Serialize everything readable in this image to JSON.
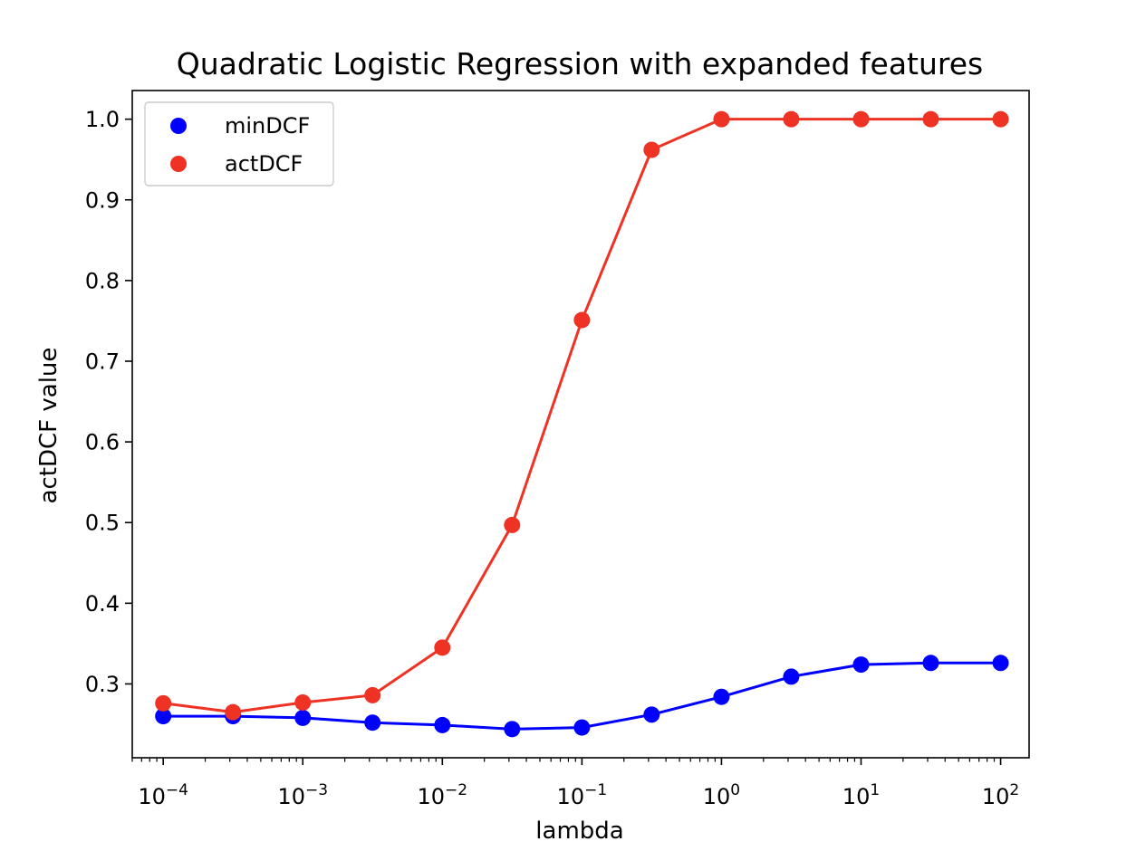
{
  "chart_data": {
    "type": "line",
    "title": "Quadratic Logistic Regression with expanded features",
    "xlabel": "lambda",
    "ylabel": "actDCF value",
    "xscale": "log",
    "xlim": [
      6e-05,
      160
    ],
    "ylim": [
      0.2085,
      1.0355
    ],
    "x": [
      0.0001,
      0.000316,
      0.001,
      0.00316,
      0.01,
      0.0316,
      0.1,
      0.316,
      1,
      3.16,
      10,
      31.6,
      100
    ],
    "x_ticks": [
      {
        "value": 0.0001,
        "base": "10",
        "exp": "−4"
      },
      {
        "value": 0.001,
        "base": "10",
        "exp": "−3"
      },
      {
        "value": 0.01,
        "base": "10",
        "exp": "−2"
      },
      {
        "value": 0.1,
        "base": "10",
        "exp": "−1"
      },
      {
        "value": 1,
        "base": "10",
        "exp": "0"
      },
      {
        "value": 10,
        "base": "10",
        "exp": "1"
      },
      {
        "value": 100,
        "base": "10",
        "exp": "2"
      }
    ],
    "y_ticks": [
      "0.3",
      "0.4",
      "0.5",
      "0.6",
      "0.7",
      "0.8",
      "0.9",
      "1.0"
    ],
    "grid": false,
    "legend_position": "top-left",
    "series": [
      {
        "name": "minDCF",
        "color": "#0000ff",
        "values": [
          0.26,
          0.26,
          0.258,
          0.252,
          0.249,
          0.244,
          0.246,
          0.262,
          0.284,
          0.309,
          0.324,
          0.326,
          0.326
        ]
      },
      {
        "name": "actDCF",
        "color": "#ee3324",
        "values": [
          0.276,
          0.265,
          0.277,
          0.286,
          0.345,
          0.497,
          0.751,
          0.962,
          1.0,
          1.0,
          1.0,
          1.0,
          1.0
        ]
      }
    ]
  }
}
